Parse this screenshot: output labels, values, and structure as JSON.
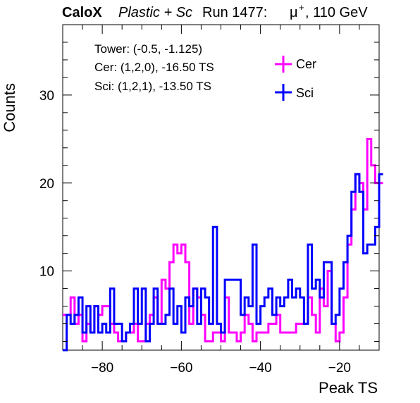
{
  "header": {
    "brand": "CaloX",
    "material": "Plastic + Sc",
    "run": "Run 1477:",
    "beam_particle": "μ",
    "beam_charge": "+",
    "beam_energy": ", 110 GeV"
  },
  "info_box": {
    "tower": "Tower: (-0.5, -1.125)",
    "cer": "Cer: (1,2,0), -16.50 TS",
    "sci": "Sci: (1,2,1), -13.50 TS"
  },
  "chart_data": {
    "type": "histogram-step",
    "title": "",
    "xlabel": "Peak TS",
    "ylabel": "Counts",
    "xlim": [
      -90,
      -10
    ],
    "ylim": [
      1,
      38
    ],
    "bin_width": 1,
    "x_edges_start": -90,
    "xticks": [
      -80,
      -60,
      -40,
      -20
    ],
    "yticks": [
      10,
      20,
      30
    ],
    "legend_position": "top-right",
    "series": [
      {
        "name": "Cer",
        "color": "#ff00ff",
        "values": [
          5,
          5,
          7,
          4,
          5,
          2,
          4,
          3,
          6,
          5,
          6,
          6,
          4,
          3,
          2,
          2,
          3,
          3,
          4,
          2,
          2,
          4,
          5,
          7,
          4,
          9,
          8,
          11,
          13,
          12,
          13,
          11,
          4,
          8,
          7,
          5,
          2,
          2,
          3,
          3,
          2,
          7,
          3,
          3,
          2,
          3,
          5,
          4,
          2,
          3,
          3,
          3,
          4,
          4,
          5,
          3,
          3,
          3,
          3,
          4,
          4,
          4,
          7,
          5,
          3,
          8,
          6,
          10,
          4,
          2,
          3,
          7,
          13,
          17,
          21,
          20,
          17,
          25,
          22,
          20,
          20
        ]
      },
      {
        "name": "Sci",
        "color": "#0000ff",
        "values": [
          1,
          5,
          4,
          5,
          7,
          3,
          6,
          3,
          6,
          3,
          4,
          3,
          8,
          4,
          4,
          2,
          3,
          4,
          8,
          4,
          8,
          2,
          4,
          8,
          4,
          4,
          5,
          8,
          4,
          6,
          3,
          7,
          6,
          8,
          4,
          8,
          7,
          4,
          15,
          4,
          3,
          9,
          9,
          9,
          9,
          5,
          7,
          6,
          13,
          4,
          6,
          7,
          8,
          5,
          7,
          6,
          7,
          9,
          7,
          8,
          7,
          4,
          13,
          8,
          9,
          7,
          11,
          11,
          4,
          5,
          8,
          11,
          14,
          19,
          21,
          19,
          12,
          13,
          13,
          15,
          21
        ]
      }
    ]
  }
}
